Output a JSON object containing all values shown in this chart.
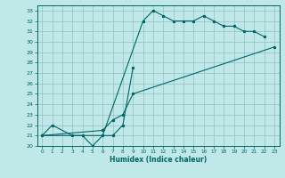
{
  "xlabel": "Humidex (Indice chaleur)",
  "background_color": "#c0e8e8",
  "grid_color": "#90c0c0",
  "line_color": "#006666",
  "xlim": [
    -0.5,
    23.5
  ],
  "ylim": [
    20,
    33.5
  ],
  "xticks": [
    0,
    1,
    2,
    3,
    4,
    5,
    6,
    7,
    8,
    9,
    10,
    11,
    12,
    13,
    14,
    15,
    16,
    17,
    18,
    19,
    20,
    21,
    22,
    23
  ],
  "yticks": [
    20,
    21,
    22,
    23,
    24,
    25,
    26,
    27,
    28,
    29,
    30,
    31,
    32,
    33
  ],
  "line1_x": [
    0,
    1,
    3,
    4,
    5,
    6,
    10,
    11,
    12,
    13,
    14,
    15,
    16,
    17,
    18,
    19,
    20,
    21,
    22
  ],
  "line1_y": [
    21.0,
    22.0,
    21.0,
    21.0,
    20.0,
    21.0,
    32.0,
    33.0,
    32.5,
    32.0,
    32.0,
    32.0,
    32.5,
    32.0,
    31.5,
    31.5,
    31.0,
    31.0,
    30.5
  ],
  "line2_x": [
    0,
    7,
    8,
    9
  ],
  "line2_y": [
    21.0,
    21.0,
    22.0,
    27.5
  ],
  "line3_x": [
    0,
    6,
    7,
    8,
    9,
    23
  ],
  "line3_y": [
    21.0,
    21.5,
    22.5,
    23.0,
    25.0,
    29.5
  ]
}
